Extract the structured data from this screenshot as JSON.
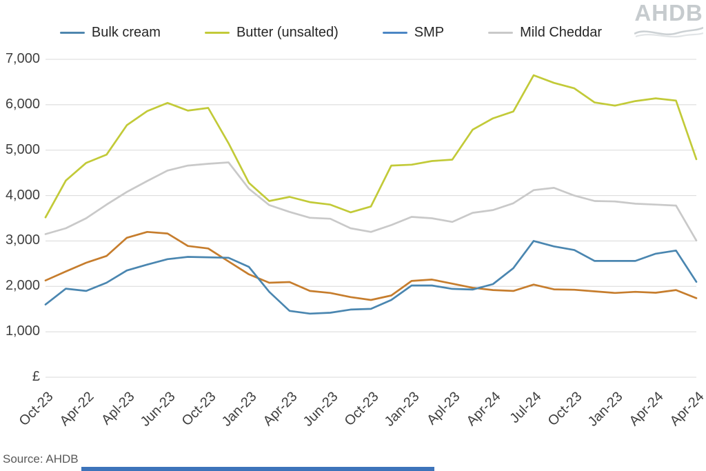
{
  "legend": [
    {
      "label": "Bulk cream",
      "swatch_color": "#4e86ae"
    },
    {
      "label": "Butter (unsalted)",
      "swatch_color": "#c2ca38"
    },
    {
      "label": "SMP",
      "swatch_color": "#4b86c4"
    },
    {
      "label": "Mild Cheddar",
      "swatch_color": "#c9c9c9"
    }
  ],
  "logo": {
    "text": "AHDB"
  },
  "y_axis": {
    "tick_labels": [
      "7,000",
      "6,000",
      "5,000",
      "4,000",
      "3,000",
      "2,000",
      "1,000"
    ],
    "unit_label": "£"
  },
  "x_axis": {
    "tick_labels": [
      "Oct-23",
      "Apr-22",
      "Apl-23",
      "Jun-23",
      "Oct-23",
      "Jan-23",
      "Apr-23",
      "Jun-23",
      "Oct-23",
      "Jan-23",
      "Apl-23",
      "Apr-24",
      "Jul-24",
      "Oct-23",
      "Jan-23",
      "Apr-24",
      "Apr-24"
    ]
  },
  "footer": {
    "source": "Source: AHDB"
  },
  "colors": {
    "gridline": "#d8d8d8",
    "axis_text": "#3f3f3f",
    "logo_gray": "#c6cbce",
    "bottom_bar": "#3d74ba"
  },
  "chart_data": {
    "type": "line",
    "title": "",
    "xlabel": "",
    "ylabel": "£",
    "ylim": [
      0,
      7000
    ],
    "gridline_step": 1000,
    "legend_position": "top",
    "x_tick_labels": [
      "Oct-23",
      "Apr-22",
      "Apl-23",
      "Jun-23",
      "Oct-23",
      "Jan-23",
      "Apr-23",
      "Jun-23",
      "Oct-23",
      "Jan-23",
      "Apl-23",
      "Apr-24",
      "Jul-24",
      "Oct-23",
      "Jan-23",
      "Apr-24",
      "Apr-24"
    ],
    "samples_per_tick_interval": 2,
    "note": "33 evenly spaced samples per series; tick labels fall on every 2nd sample. Series listed in draw order (back to front). SMP is drawn orange in the plot although its legend swatch appears blue in the source image.",
    "series": [
      {
        "name": "Mild Cheddar",
        "color": "#c9c9c9",
        "values": [
          3150,
          3280,
          3500,
          3800,
          4080,
          4320,
          4550,
          4660,
          4700,
          4730,
          4150,
          3790,
          3640,
          3510,
          3490,
          3280,
          3200,
          3350,
          3530,
          3500,
          3420,
          3620,
          3680,
          3830,
          4120,
          4170,
          4000,
          3880,
          3870,
          3820,
          3800,
          3780,
          3010
        ]
      },
      {
        "name": "Butter (unsalted)",
        "color": "#c2ca38",
        "values": [
          3520,
          4330,
          4720,
          4900,
          5550,
          5860,
          6040,
          5870,
          5930,
          5150,
          4280,
          3880,
          3970,
          3855,
          3800,
          3630,
          3760,
          4660,
          4680,
          4760,
          4790,
          5450,
          5700,
          5850,
          6650,
          6480,
          6360,
          6050,
          5980,
          6080,
          6140,
          6090,
          4800
        ]
      },
      {
        "name": "SMP",
        "color": "#c67d2d",
        "values": [
          2130,
          2330,
          2520,
          2670,
          3070,
          3200,
          3165,
          2890,
          2835,
          2550,
          2265,
          2080,
          2095,
          1900,
          1855,
          1765,
          1700,
          1800,
          2120,
          2150,
          2060,
          1970,
          1920,
          1900,
          2040,
          1935,
          1925,
          1890,
          1855,
          1880,
          1860,
          1920,
          1740
        ]
      },
      {
        "name": "Bulk cream",
        "color": "#4a86b0",
        "values": [
          1600,
          1950,
          1900,
          2080,
          2350,
          2480,
          2600,
          2650,
          2640,
          2630,
          2430,
          1880,
          1460,
          1400,
          1420,
          1490,
          1505,
          1700,
          2020,
          2020,
          1945,
          1930,
          2050,
          2400,
          3000,
          2880,
          2800,
          2560,
          2560,
          2560,
          2720,
          2790,
          2100
        ]
      }
    ]
  }
}
